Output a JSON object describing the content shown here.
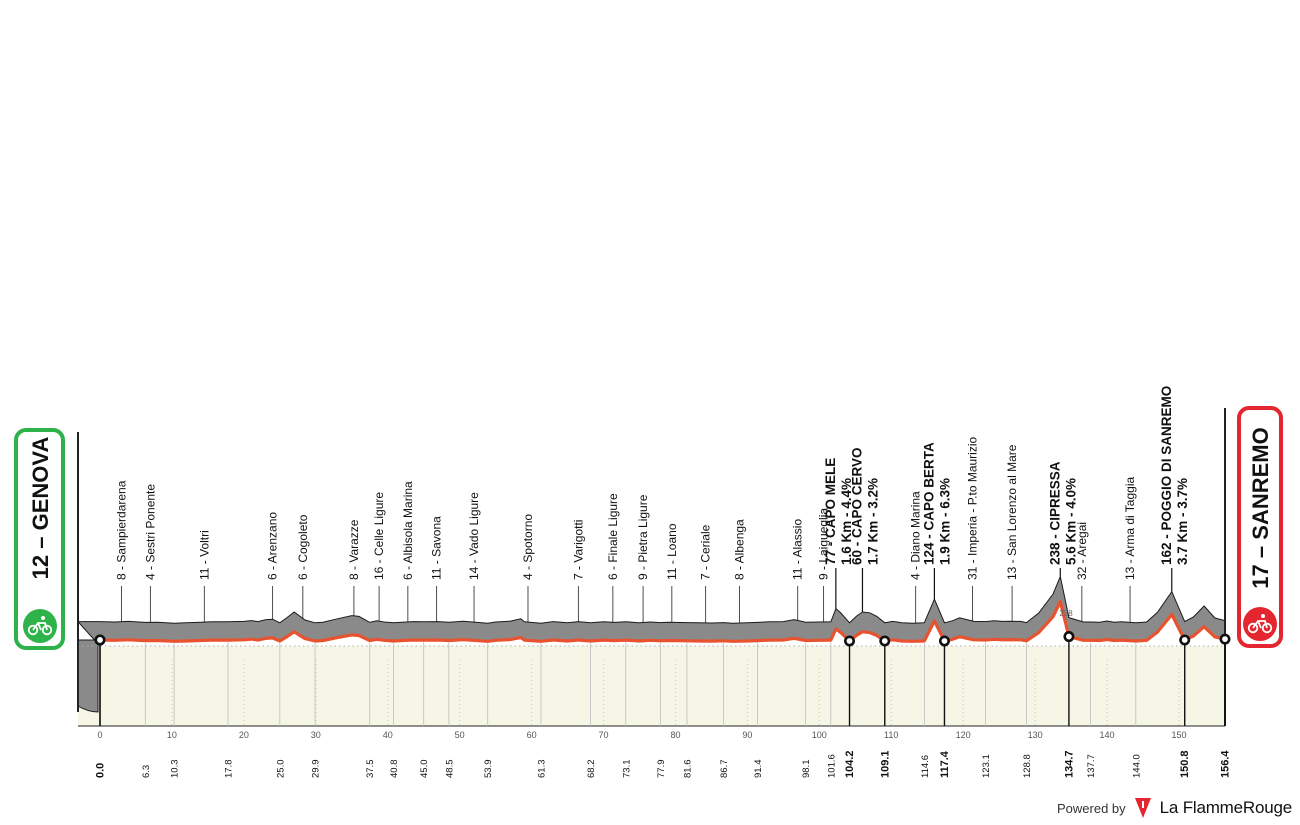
{
  "start": {
    "altitude": "12",
    "name": "GENOVA",
    "color": "#2db34a"
  },
  "finish": {
    "altitude": "17",
    "name": "SANREMO",
    "color": "#e3262f"
  },
  "footer": {
    "powered_by": "Powered by",
    "brand": "La FlammeRouge"
  },
  "colors": {
    "terrain": "#8a8a8a",
    "route": "#e8522e",
    "plain": "#f5f6e6"
  },
  "chart_data": {
    "type": "area",
    "title": "",
    "xlabel": "",
    "ylabel": "",
    "xlim": [
      0,
      156.4
    ],
    "x_ticks": [
      0,
      10,
      20,
      30,
      40,
      50,
      60,
      70,
      80,
      90,
      100,
      110,
      120,
      130,
      140,
      150
    ],
    "profile": [
      [
        0,
        12
      ],
      [
        2,
        10
      ],
      [
        4,
        13
      ],
      [
        6.3,
        8
      ],
      [
        8,
        9
      ],
      [
        10.3,
        4
      ],
      [
        12,
        6
      ],
      [
        14,
        9
      ],
      [
        15.5,
        11
      ],
      [
        17.8,
        11
      ],
      [
        20,
        13
      ],
      [
        21,
        17
      ],
      [
        22,
        12
      ],
      [
        23,
        21
      ],
      [
        24,
        24
      ],
      [
        25,
        6
      ],
      [
        26,
        32
      ],
      [
        27,
        60
      ],
      [
        28.5,
        20
      ],
      [
        29.9,
        6
      ],
      [
        31,
        9
      ],
      [
        33,
        26
      ],
      [
        35,
        42
      ],
      [
        36,
        38
      ],
      [
        37.5,
        8
      ],
      [
        38.5,
        16
      ],
      [
        39.5,
        10
      ],
      [
        40.8,
        6
      ],
      [
        42,
        9
      ],
      [
        43.5,
        12
      ],
      [
        45,
        11
      ],
      [
        47,
        12
      ],
      [
        48.5,
        9
      ],
      [
        50.5,
        14
      ],
      [
        53.9,
        4
      ],
      [
        55,
        10
      ],
      [
        57,
        14
      ],
      [
        58.5,
        26
      ],
      [
        59,
        11
      ],
      [
        61.3,
        4
      ],
      [
        63,
        12
      ],
      [
        65,
        6
      ],
      [
        66.5,
        12
      ],
      [
        68.2,
        6
      ],
      [
        70,
        11
      ],
      [
        71.5,
        8
      ],
      [
        73.1,
        11
      ],
      [
        75,
        6
      ],
      [
        76.5,
        10
      ],
      [
        77.9,
        7
      ],
      [
        79,
        9
      ],
      [
        81.6,
        7
      ],
      [
        83,
        6
      ],
      [
        85,
        5
      ],
      [
        86.7,
        7
      ],
      [
        88,
        4
      ],
      [
        90,
        6
      ],
      [
        91.4,
        8
      ],
      [
        93,
        11
      ],
      [
        95,
        12
      ],
      [
        96.5,
        22
      ],
      [
        98.1,
        9
      ],
      [
        100,
        10
      ],
      [
        101.6,
        11
      ],
      [
        102.3,
        77
      ],
      [
        103,
        55
      ],
      [
        104.2,
        6
      ],
      [
        105.2,
        40
      ],
      [
        106,
        60
      ],
      [
        107,
        56
      ],
      [
        108,
        38
      ],
      [
        109.1,
        6
      ],
      [
        110.2,
        13
      ],
      [
        111.5,
        6
      ],
      [
        113,
        4
      ],
      [
        114.6,
        6
      ],
      [
        116,
        124
      ],
      [
        117.4,
        6
      ],
      [
        118.5,
        16
      ],
      [
        119.5,
        31
      ],
      [
        120.5,
        22
      ],
      [
        121.5,
        13
      ],
      [
        123.1,
        12
      ],
      [
        124.3,
        16
      ],
      [
        125.5,
        13
      ],
      [
        126.5,
        14
      ],
      [
        128,
        13
      ],
      [
        128.8,
        7
      ],
      [
        130.5,
        55
      ],
      [
        132.5,
        150
      ],
      [
        133.5,
        238
      ],
      [
        134.7,
        32
      ],
      [
        135.8,
        20
      ],
      [
        136.7,
        10
      ],
      [
        137.7,
        10
      ],
      [
        139,
        9
      ],
      [
        140,
        15
      ],
      [
        141,
        9
      ],
      [
        142,
        11
      ],
      [
        144,
        6
      ],
      [
        145.5,
        10
      ],
      [
        147,
        58
      ],
      [
        149,
        162
      ],
      [
        150.8,
        12
      ],
      [
        152,
        35
      ],
      [
        153.5,
        90
      ],
      [
        155,
        30
      ],
      [
        156.4,
        17
      ]
    ],
    "markers": [
      {
        "km": 3.0,
        "altitude": "8",
        "name": "Sampierdarena"
      },
      {
        "km": 7.0,
        "altitude": "4",
        "name": "Sestri Ponente"
      },
      {
        "km": 14.5,
        "altitude": "11",
        "name": "Voltri"
      },
      {
        "km": 24.0,
        "altitude": "6",
        "name": "Arenzano"
      },
      {
        "km": 28.2,
        "altitude": "6",
        "name": "Cogoleto"
      },
      {
        "km": 35.3,
        "altitude": "8",
        "name": "Varazze"
      },
      {
        "km": 38.8,
        "altitude": "16",
        "name": "Celle Ligure"
      },
      {
        "km": 42.8,
        "altitude": "6",
        "name": "Albisola Marina"
      },
      {
        "km": 46.8,
        "altitude": "11",
        "name": "Savona"
      },
      {
        "km": 52.0,
        "altitude": "14",
        "name": "Vado Ligure"
      },
      {
        "km": 59.5,
        "altitude": "4",
        "name": "Spotorno"
      },
      {
        "km": 66.5,
        "altitude": "7",
        "name": "Varigotti"
      },
      {
        "km": 71.3,
        "altitude": "6",
        "name": "Finale Ligure"
      },
      {
        "km": 75.5,
        "altitude": "9",
        "name": "Pietra Ligure"
      },
      {
        "km": 79.5,
        "altitude": "11",
        "name": "Loano"
      },
      {
        "km": 84.2,
        "altitude": "7",
        "name": "Ceriale"
      },
      {
        "km": 88.9,
        "altitude": "8",
        "name": "Albenga"
      },
      {
        "km": 97.0,
        "altitude": "11",
        "name": "Alassio"
      },
      {
        "km": 100.6,
        "altitude": "9",
        "name": "Laigueglia"
      },
      {
        "km": 113.4,
        "altitude": "4",
        "name": "Diano Marina"
      },
      {
        "km": 121.3,
        "altitude": "31",
        "name": "Imperia - P.to Maurizio"
      },
      {
        "km": 126.8,
        "altitude": "13",
        "name": "San Lorenzo al Mare"
      },
      {
        "km": 136.5,
        "altitude": "32",
        "name": "Aregai"
      },
      {
        "km": 143.2,
        "altitude": "13",
        "name": "Arma di Taggia"
      }
    ],
    "climbs": [
      {
        "km": 102.3,
        "altitude": "77",
        "name": "CAPO MELE",
        "detail": "1.6 Km - 4.4%"
      },
      {
        "km": 106.0,
        "altitude": "60",
        "name": "CAPO CERVO",
        "detail": "1.7 Km - 3.2%"
      },
      {
        "km": 116.0,
        "altitude": "124",
        "name": "CAPO BERTA",
        "detail": "1.9 Km - 6.3%"
      },
      {
        "km": 133.5,
        "altitude": "238",
        "name": "CIPRESSA",
        "detail": "5.6 Km - 4.0%"
      },
      {
        "km": 149.0,
        "altitude": "162",
        "name": "POGGIO DI SANREMO",
        "detail": "3.7 Km - 3.7%"
      }
    ],
    "km_points": [
      "0.0",
      "6.3",
      "10.3",
      "17.8",
      "25.0",
      "29.9",
      "37.5",
      "40.8",
      "45.0",
      "48.5",
      "53.9",
      "61.3",
      "68.2",
      "73.1",
      "77.9",
      "81.6",
      "86.7",
      "91.4",
      "98.1",
      "101.6",
      "104.2",
      "109.1",
      "114.6",
      "117.4",
      "123.1",
      "128.8",
      "134.7",
      "137.7",
      "144.0",
      "150.8",
      "156.4"
    ],
    "bold_km_points": [
      "0.0",
      "104.2",
      "109.1",
      "117.4",
      "134.7",
      "150.8",
      "156.4"
    ],
    "annotation": {
      "km": 134.3,
      "text": "238"
    }
  }
}
